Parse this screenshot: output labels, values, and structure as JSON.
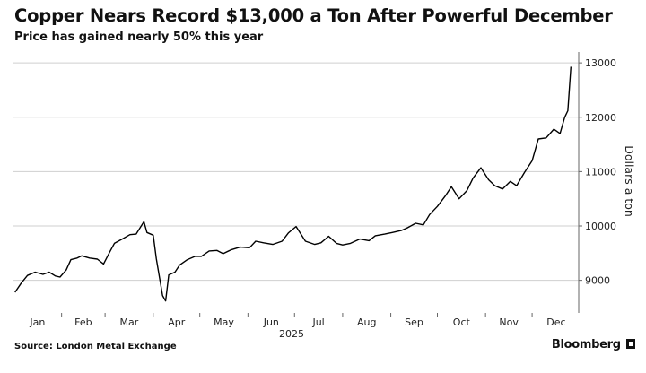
{
  "chart_data": {
    "type": "line",
    "title": "Copper Nears Record $13,000 a Ton After Powerful December",
    "subtitle": "Price has gained nearly 50% this year",
    "ylabel": "Dollars a ton",
    "year_label": "2025",
    "source": "Source: London Metal Exchange",
    "brand": "Bloomberg",
    "ylim": [
      8400,
      13200
    ],
    "yticks": [
      9000,
      10000,
      11000,
      12000,
      13000
    ],
    "ytick_labels": [
      "9000",
      "10000",
      "11000",
      "12000",
      "13000"
    ],
    "xlim": [
      "2025-01-01",
      "2025-12-31"
    ],
    "month_labels": [
      "Jan",
      "Feb",
      "Mar",
      "Apr",
      "May",
      "Jun",
      "Jul",
      "Aug",
      "Sep",
      "Oct",
      "Nov",
      "Dec"
    ],
    "grid": true,
    "line_color": "#000000",
    "series": [
      {
        "x": [
          "2025-01-02",
          "2025-01-06",
          "2025-01-10",
          "2025-01-15",
          "2025-01-20",
          "2025-01-24",
          "2025-01-28",
          "2025-01-31",
          "2025-02-04",
          "2025-02-07",
          "2025-02-11",
          "2025-02-14",
          "2025-02-19",
          "2025-02-24",
          "2025-02-28",
          "2025-03-04",
          "2025-03-07",
          "2025-03-12",
          "2025-03-17",
          "2025-03-21",
          "2025-03-26",
          "2025-03-28",
          "2025-04-01",
          "2025-04-03",
          "2025-04-07",
          "2025-04-09",
          "2025-04-11",
          "2025-04-15",
          "2025-04-18",
          "2025-04-23",
          "2025-04-28",
          "2025-05-02",
          "2025-05-07",
          "2025-05-12",
          "2025-05-16",
          "2025-05-21",
          "2025-05-27",
          "2025-06-02",
          "2025-06-06",
          "2025-06-11",
          "2025-06-17",
          "2025-06-23",
          "2025-06-27",
          "2025-07-02",
          "2025-07-08",
          "2025-07-14",
          "2025-07-18",
          "2025-07-23",
          "2025-07-28",
          "2025-08-01",
          "2025-08-06",
          "2025-08-12",
          "2025-08-18",
          "2025-08-22",
          "2025-08-28",
          "2025-09-02",
          "2025-09-08",
          "2025-09-12",
          "2025-09-17",
          "2025-09-22",
          "2025-09-26",
          "2025-10-01",
          "2025-10-06",
          "2025-10-10",
          "2025-10-15",
          "2025-10-20",
          "2025-10-24",
          "2025-10-29",
          "2025-11-03",
          "2025-11-07",
          "2025-11-12",
          "2025-11-17",
          "2025-11-21",
          "2025-11-26",
          "2025-12-01",
          "2025-12-05",
          "2025-12-10",
          "2025-12-15",
          "2025-12-19",
          "2025-12-22",
          "2025-12-24",
          "2025-12-26"
        ],
        "y": [
          8780,
          8950,
          9090,
          9150,
          9110,
          9150,
          9080,
          9060,
          9190,
          9380,
          9410,
          9450,
          9410,
          9390,
          9300,
          9520,
          9680,
          9760,
          9840,
          9850,
          10080,
          9880,
          9830,
          9400,
          8720,
          8620,
          9100,
          9150,
          9280,
          9380,
          9440,
          9440,
          9540,
          9550,
          9490,
          9560,
          9610,
          9600,
          9720,
          9690,
          9660,
          9720,
          9870,
          9990,
          9720,
          9660,
          9690,
          9810,
          9680,
          9650,
          9680,
          9760,
          9730,
          9820,
          9850,
          9880,
          9920,
          9970,
          10050,
          10020,
          10210,
          10360,
          10550,
          10720,
          10500,
          10650,
          10880,
          11070,
          10850,
          10740,
          10680,
          10820,
          10740,
          10980,
          11200,
          11600,
          11620,
          11780,
          11700,
          12000,
          12120,
          12930
        ]
      }
    ]
  }
}
